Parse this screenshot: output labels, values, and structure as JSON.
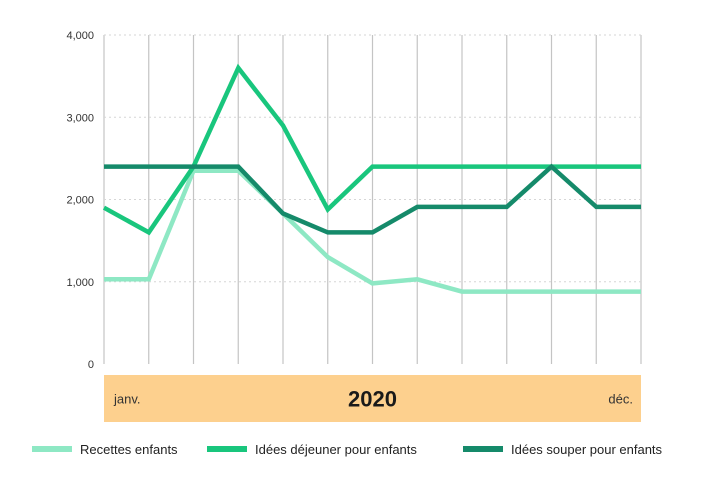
{
  "chart_data": {
    "type": "line",
    "title": "",
    "xlabel": "",
    "ylabel": "",
    "ylim": [
      0,
      4000
    ],
    "yticks": [
      {
        "value": 0,
        "label": "0"
      },
      {
        "value": 1000,
        "label": "1,000"
      },
      {
        "value": 2000,
        "label": "2,000"
      },
      {
        "value": 3000,
        "label": "3,000"
      },
      {
        "value": 4000,
        "label": "4,000"
      }
    ],
    "grid": {
      "horizontal": "dotted",
      "vertical": "solid"
    },
    "band": {
      "color": "#fdd08e",
      "start_label": "janv.",
      "center_label": "2020",
      "end_label": "déc."
    },
    "legend_position": "bottom",
    "series": [
      {
        "name": "Recettes enfants",
        "color": "#8ee8c4",
        "values": [
          1030,
          1030,
          2350,
          2350,
          1830,
          1300,
          980,
          1030,
          880,
          880,
          880,
          880,
          880
        ]
      },
      {
        "name": "Idées déjeuner pour enfants",
        "color": "#19c67d",
        "values": [
          1900,
          1600,
          2400,
          3600,
          2900,
          1880,
          2400,
          2400,
          2400,
          2400,
          2400,
          2400,
          2400
        ]
      },
      {
        "name": "Idées souper pour enfants",
        "color": "#158a6a",
        "values": [
          2400,
          2400,
          2400,
          2400,
          1830,
          1600,
          1600,
          1910,
          1910,
          1910,
          2400,
          1910,
          1910
        ]
      }
    ]
  }
}
